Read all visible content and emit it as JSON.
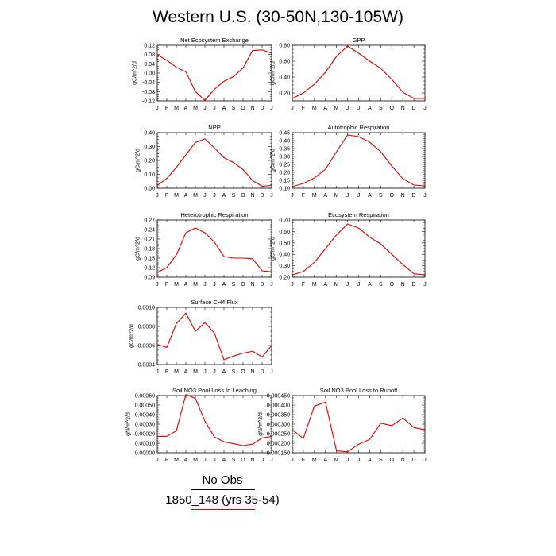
{
  "page": {
    "title": "Western U.S. (30-50N,130-105W)",
    "legend": [
      {
        "label": "No Obs",
        "color": "#000000"
      },
      {
        "label": "1850_148 (yrs 35-54)",
        "color": "#e00000"
      }
    ]
  },
  "colors": {
    "series": "#e00000",
    "axis": "#000000"
  },
  "chart_data": [
    {
      "type": "line",
      "title": "Net Ecosystem Exchange",
      "ylabel": "gC/m^2/d",
      "categories": [
        "J",
        "F",
        "M",
        "A",
        "M",
        "J",
        "J",
        "A",
        "S",
        "O",
        "N",
        "D",
        "J"
      ],
      "ylim": [
        -0.12,
        0.12
      ],
      "yticks": [
        "-0.12",
        "-0.08",
        "-0.04",
        "0.00",
        "0.04",
        "0.08",
        "0.12"
      ],
      "values": [
        0.08,
        0.055,
        0.025,
        0.005,
        -0.08,
        -0.118,
        -0.07,
        -0.035,
        -0.015,
        0.022,
        0.097,
        0.1,
        0.086
      ]
    },
    {
      "type": "line",
      "title": "GPP",
      "ylabel": "gC/m^2/d",
      "categories": [
        "J",
        "F",
        "M",
        "A",
        "M",
        "J",
        "J",
        "A",
        "S",
        "O",
        "N",
        "D",
        "J"
      ],
      "ylim": [
        0.1,
        0.8
      ],
      "yticks": [
        "0.20",
        "0.40",
        "0.60",
        "0.80"
      ],
      "values": [
        0.13,
        0.2,
        0.31,
        0.46,
        0.66,
        0.79,
        0.7,
        0.6,
        0.51,
        0.37,
        0.21,
        0.13,
        0.13
      ]
    },
    {
      "type": "line",
      "title": "NPP",
      "ylabel": "gC/m^2/d",
      "categories": [
        "J",
        "F",
        "M",
        "A",
        "M",
        "J",
        "J",
        "A",
        "S",
        "O",
        "N",
        "D",
        "J"
      ],
      "ylim": [
        0.0,
        0.4
      ],
      "yticks": [
        "0.00",
        "0.10",
        "0.20",
        "0.30",
        "0.40"
      ],
      "values": [
        0.02,
        0.07,
        0.15,
        0.24,
        0.33,
        0.355,
        0.29,
        0.22,
        0.185,
        0.135,
        0.055,
        0.015,
        0.02
      ]
    },
    {
      "type": "line",
      "title": "Autotrophic Respiration",
      "ylabel": "gC/m^2/d",
      "categories": [
        "J",
        "F",
        "M",
        "A",
        "M",
        "J",
        "J",
        "A",
        "S",
        "O",
        "N",
        "D",
        "J"
      ],
      "ylim": [
        0.1,
        0.45
      ],
      "yticks": [
        "0.10",
        "0.15",
        "0.20",
        "0.25",
        "0.30",
        "0.35",
        "0.40",
        "0.45"
      ],
      "values": [
        0.11,
        0.13,
        0.165,
        0.22,
        0.33,
        0.435,
        0.425,
        0.39,
        0.33,
        0.24,
        0.16,
        0.12,
        0.115
      ]
    },
    {
      "type": "line",
      "title": "Heterotrophic Respiration",
      "ylabel": "gC/m^2/d",
      "categories": [
        "J",
        "F",
        "M",
        "A",
        "M",
        "J",
        "J",
        "A",
        "S",
        "O",
        "N",
        "D",
        "J"
      ],
      "ylim": [
        0.09,
        0.27
      ],
      "yticks": [
        "0.09",
        "0.12",
        "0.15",
        "0.18",
        "0.21",
        "0.24",
        "0.27"
      ],
      "values": [
        0.105,
        0.12,
        0.16,
        0.23,
        0.245,
        0.23,
        0.2,
        0.155,
        0.15,
        0.15,
        0.148,
        0.11,
        0.107
      ]
    },
    {
      "type": "line",
      "title": "Ecosystem Respiration",
      "ylabel": "gC/m^2/d",
      "categories": [
        "J",
        "F",
        "M",
        "A",
        "M",
        "J",
        "J",
        "A",
        "S",
        "O",
        "N",
        "D",
        "J"
      ],
      "ylim": [
        0.2,
        0.7
      ],
      "yticks": [
        "0.20",
        "0.30",
        "0.40",
        "0.50",
        "0.60",
        "0.70"
      ],
      "values": [
        0.22,
        0.25,
        0.33,
        0.45,
        0.57,
        0.665,
        0.63,
        0.55,
        0.49,
        0.4,
        0.31,
        0.23,
        0.22
      ]
    },
    {
      "type": "line",
      "title": "Surface CH4 Flux",
      "ylabel": "gC/m^2/d",
      "categories": [
        "J",
        "F",
        "M",
        "A",
        "M",
        "J",
        "J",
        "A",
        "S",
        "O",
        "N",
        "D",
        "J"
      ],
      "ylim": [
        0.0004,
        0.001
      ],
      "yticks": [
        "0.0004",
        "0.0006",
        "0.0008",
        "0.0010"
      ],
      "values": [
        0.00061,
        0.00058,
        0.00083,
        0.00094,
        0.00075,
        0.00084,
        0.00073,
        0.00045,
        0.00049,
        0.00052,
        0.00054,
        0.00048,
        0.0006
      ]
    },
    {
      "type": "line",
      "title": "Soil NO3 Pool Loss to Leaching",
      "ylabel": "gN/m^2/d",
      "categories": [
        "J",
        "F",
        "M",
        "A",
        "M",
        "J",
        "J",
        "A",
        "S",
        "O",
        "N",
        "D",
        "J"
      ],
      "ylim": [
        0,
        0.0006
      ],
      "yticks": [
        "0.00000",
        "0.00010",
        "0.00020",
        "0.00030",
        "0.00040",
        "0.00050",
        "0.00060"
      ],
      "values": [
        0.00017,
        0.000172,
        0.00023,
        0.00061,
        0.00057,
        0.00033,
        0.000165,
        0.000115,
        9.5e-05,
        7.5e-05,
        9e-05,
        0.000155,
        0.00017
      ]
    },
    {
      "type": "line",
      "title": "Soil NO3 Pool Loss to Runoff",
      "ylabel": "gN/m^2/d",
      "categories": [
        "J",
        "F",
        "M",
        "A",
        "M",
        "J",
        "J",
        "A",
        "S",
        "O",
        "N",
        "D",
        "J"
      ],
      "ylim": [
        0.00015,
        0.00045
      ],
      "yticks": [
        "0.000150",
        "0.000200",
        "0.000250",
        "0.000300",
        "0.000350",
        "0.000400",
        "0.000450"
      ],
      "values": [
        0.00027,
        0.000225,
        0.000395,
        0.000415,
        0.00016,
        0.000155,
        0.000195,
        0.00022,
        0.000305,
        0.000292,
        0.000332,
        0.000282,
        0.00027
      ]
    }
  ]
}
